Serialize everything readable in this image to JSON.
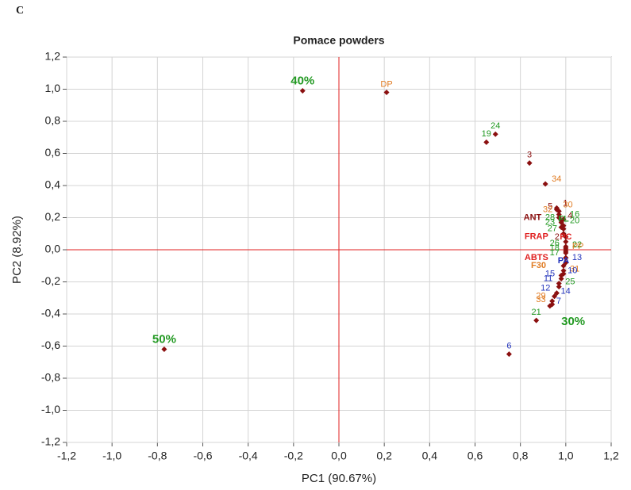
{
  "panel_letter": "C",
  "chart_data": {
    "type": "scatter",
    "title": "Pomace powders",
    "x_label": "PC1 (90.67%)",
    "y_label": "PC2 (8.92%)",
    "xlim": [
      -1.2,
      1.2
    ],
    "ylim": [
      -1.2,
      1.2
    ],
    "xticks": [
      {
        "value": -1.2,
        "label": "-1,2"
      },
      {
        "value": -1.0,
        "label": "-1,0"
      },
      {
        "value": -0.8,
        "label": "-0,8"
      },
      {
        "value": -0.6,
        "label": "-0,6"
      },
      {
        "value": -0.4,
        "label": "-0,4"
      },
      {
        "value": -0.2,
        "label": "-0,2"
      },
      {
        "value": 0,
        "label": "0,0"
      },
      {
        "value": 0.2,
        "label": "0,2"
      },
      {
        "value": 0.4,
        "label": "0,4"
      },
      {
        "value": 0.6,
        "label": "0,6"
      },
      {
        "value": 0.8,
        "label": "0,8"
      },
      {
        "value": 1.0,
        "label": "1,0"
      },
      {
        "value": 1.2,
        "label": "1,2"
      }
    ],
    "yticks": [
      {
        "value": -1.2,
        "label": "-1,2"
      },
      {
        "value": -1.0,
        "label": "-1,0"
      },
      {
        "value": -0.8,
        "label": "-0,8"
      },
      {
        "value": -0.6,
        "label": "-0,6"
      },
      {
        "value": -0.4,
        "label": "-0,4"
      },
      {
        "value": -0.2,
        "label": "-0,2"
      },
      {
        "value": 0,
        "label": "0,0"
      },
      {
        "value": 0.2,
        "label": "0,2"
      },
      {
        "value": 0.4,
        "label": "0,4"
      },
      {
        "value": 0.6,
        "label": "0,6"
      },
      {
        "value": 0.8,
        "label": "0,8"
      },
      {
        "value": 1.0,
        "label": "1,0"
      },
      {
        "value": 1.2,
        "label": "1,2"
      }
    ],
    "grid": true,
    "marker_color": "#8b1010",
    "axis_line_color": "#e02020",
    "annotations": [
      {
        "text": "30%",
        "x": 0.98,
        "y": -0.45,
        "color": "#229922"
      }
    ],
    "points": [
      {
        "label": "40%",
        "x": -0.16,
        "y": 0.99,
        "color": "#229922",
        "bold": true
      },
      {
        "label": "DP",
        "x": 0.21,
        "y": 0.98,
        "color": "#e07b22"
      },
      {
        "label": "19",
        "x": 0.65,
        "y": 0.67,
        "color": "#229922"
      },
      {
        "label": "24",
        "x": 0.69,
        "y": 0.72,
        "color": "#229922"
      },
      {
        "label": "3",
        "x": 0.84,
        "y": 0.54,
        "color": "#8b1010"
      },
      {
        "label": "34",
        "x": 0.91,
        "y": 0.41,
        "color": "#e07b22"
      },
      {
        "label": "6",
        "x": 0.75,
        "y": -0.65,
        "color": "#2233bb"
      },
      {
        "label": "21",
        "x": 0.87,
        "y": -0.44,
        "color": "#229922"
      },
      {
        "label": "50%",
        "x": -0.77,
        "y": -0.62,
        "color": "#229922",
        "bold": true
      },
      {
        "label": "1",
        "x": 0.96,
        "y": 0.26,
        "color": "#8b1010"
      },
      {
        "label": "5",
        "x": 0.97,
        "y": 0.24,
        "color": "#8b1010"
      },
      {
        "label": "30",
        "x": 0.96,
        "y": 0.25,
        "color": "#e07b22"
      },
      {
        "label": "32",
        "x": 0.97,
        "y": 0.22,
        "color": "#e07b22"
      },
      {
        "label": "16",
        "x": 0.99,
        "y": 0.19,
        "color": "#229922"
      },
      {
        "label": "ANT",
        "x": 0.97,
        "y": 0.2,
        "color": "#8b1010",
        "bold": true
      },
      {
        "label": "4",
        "x": 0.98,
        "y": 0.18,
        "color": "#8b1010"
      },
      {
        "label": "28",
        "x": 0.98,
        "y": 0.17,
        "color": "#229922"
      },
      {
        "label": "20",
        "x": 0.99,
        "y": 0.15,
        "color": "#229922"
      },
      {
        "label": "23",
        "x": 0.98,
        "y": 0.14,
        "color": "#229922"
      },
      {
        "label": "FL",
        "x": 0.99,
        "y": 0.13,
        "color": "#229922",
        "bold": true
      },
      {
        "label": "27",
        "x": 0.99,
        "y": 0.1,
        "color": "#229922"
      },
      {
        "label": "FRAP",
        "x": 1.0,
        "y": 0.08,
        "color": "#e02020",
        "bold": true
      },
      {
        "label": "2",
        "x": 1.0,
        "y": 0.05,
        "color": "#8b1010"
      },
      {
        "label": "PC",
        "x": 1.0,
        "y": 0.02,
        "color": "#e02020",
        "bold": true
      },
      {
        "label": "26",
        "x": 1.0,
        "y": 0.01,
        "color": "#229922"
      },
      {
        "label": "22",
        "x": 1.0,
        "y": 0.0,
        "color": "#229922"
      },
      {
        "label": "18",
        "x": 1.0,
        "y": -0.02,
        "color": "#229922"
      },
      {
        "label": "PP",
        "x": 1.0,
        "y": -0.01,
        "color": "#e07b22"
      },
      {
        "label": "ABTS",
        "x": 1.0,
        "y": -0.05,
        "color": "#e02020",
        "bold": true
      },
      {
        "label": "13",
        "x": 1.0,
        "y": -0.08,
        "color": "#2233bb"
      },
      {
        "label": "17",
        "x": 1.0,
        "y": -0.05,
        "color": "#229922"
      },
      {
        "label": "F30",
        "x": 0.99,
        "y": -0.1,
        "color": "#e07b22",
        "bold": true
      },
      {
        "label": "PA",
        "x": 0.99,
        "y": -0.13,
        "color": "#2233bb",
        "bold": true
      },
      {
        "label": "31",
        "x": 0.99,
        "y": -0.15,
        "color": "#e07b22"
      },
      {
        "label": "15",
        "x": 0.98,
        "y": -0.18,
        "color": "#2233bb"
      },
      {
        "label": "10",
        "x": 0.98,
        "y": -0.16,
        "color": "#2233bb"
      },
      {
        "label": "11",
        "x": 0.97,
        "y": -0.21,
        "color": "#2233bb"
      },
      {
        "label": "25",
        "x": 0.97,
        "y": -0.23,
        "color": "#229922"
      },
      {
        "label": "12",
        "x": 0.96,
        "y": -0.27,
        "color": "#2233bb"
      },
      {
        "label": "14",
        "x": 0.95,
        "y": -0.29,
        "color": "#2233bb"
      },
      {
        "label": "29",
        "x": 0.94,
        "y": -0.32,
        "color": "#e07b22"
      },
      {
        "label": "7",
        "x": 0.93,
        "y": -0.35,
        "color": "#2233bb"
      },
      {
        "label": "33",
        "x": 0.94,
        "y": -0.34,
        "color": "#e07b22"
      }
    ]
  }
}
